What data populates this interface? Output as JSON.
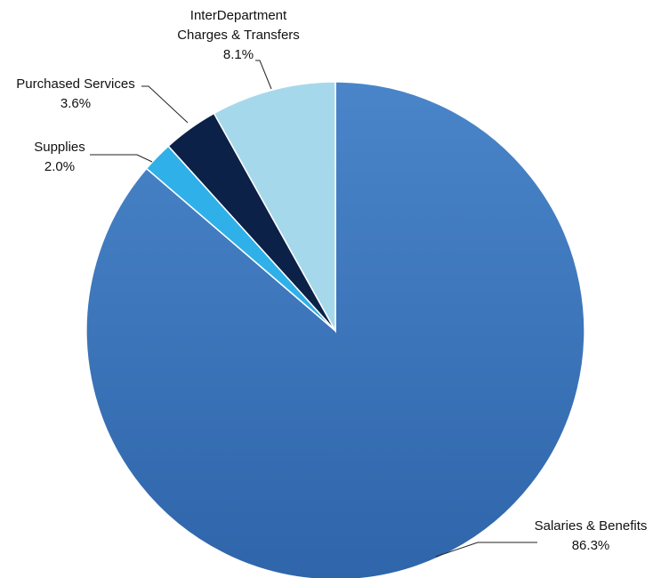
{
  "chart_data": {
    "type": "pie",
    "title": "",
    "start_angle_deg": 0,
    "direction": "clockwise",
    "slices": [
      {
        "name": "Salaries & Benefits",
        "value": 86.3,
        "value_label": "86.3%",
        "color": "#3f78bd"
      },
      {
        "name": "Supplies",
        "value": 2.0,
        "value_label": "2.0%",
        "color": "#2fb0e8"
      },
      {
        "name": "Purchased Services",
        "value": 3.6,
        "value_label": "3.6%",
        "color": "#0b2148"
      },
      {
        "name": "InterDepartment\nCharges & Transfers",
        "value": 8.1,
        "value_label": "8.1%",
        "color": "#a6d8ec"
      }
    ],
    "legend": "none",
    "labels": "outside with leader lines"
  }
}
